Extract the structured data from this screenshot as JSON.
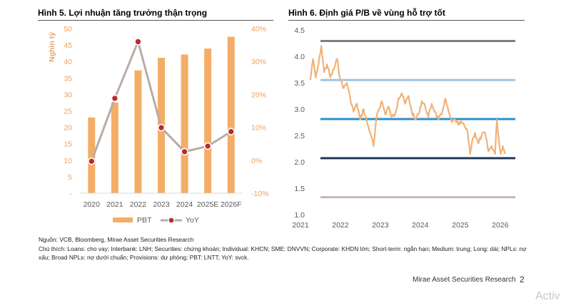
{
  "figures": {
    "left_title": "Hình 5. Lợi nhuận tăng trưởng thận trọng",
    "right_title": "Hình 6. Định giá P/B về vùng hỗ trợ tốt"
  },
  "chart_data": [
    {
      "type": "bar",
      "title": "Hình 5. Lợi nhuận tăng trưởng thận trọng",
      "categories": [
        "2020",
        "2021",
        "2022",
        "2023",
        "2024",
        "2025E",
        "2026F"
      ],
      "ylabel": "Nghìn tỷ",
      "ylim": [
        0,
        50
      ],
      "y_ticks": [
        "-",
        "5",
        "10",
        "15",
        "20",
        "25",
        "30",
        "35",
        "40",
        "45",
        "50"
      ],
      "y2lim": [
        -10,
        40
      ],
      "y2_ticks": [
        "-10%",
        "0%",
        "10%",
        "20%",
        "30%",
        "40%"
      ],
      "series": [
        {
          "name": "PBT",
          "kind": "bar",
          "axis": "left",
          "color": "#f4ad66",
          "values": [
            23,
            27.5,
            37.3,
            41.1,
            42.1,
            43.9,
            47.5
          ]
        },
        {
          "name": "YoY",
          "kind": "line",
          "axis": "right",
          "color": "#b9aca4",
          "marker_color": "#c0282d",
          "values": [
            -0.3,
            18.8,
            36.0,
            9.9,
            2.6,
            4.3,
            8.7
          ]
        }
      ],
      "legend": "bottom",
      "grid": false
    },
    {
      "type": "line",
      "title": "Hình 6. Định giá P/B về vùng hỗ trợ tốt",
      "xlim": [
        "2021-01-01",
        "2026-06-01"
      ],
      "x_ticks": [
        "2021",
        "2022",
        "2023",
        "2024",
        "2025",
        "2026"
      ],
      "ylim": [
        1.0,
        4.5
      ],
      "y_ticks": [
        "1.0",
        "1.5",
        "2.0",
        "2.5",
        "3.0",
        "3.5",
        "4.0",
        "4.5"
      ],
      "reference_lines": [
        {
          "value": 4.29,
          "color": "#7f7f7f"
        },
        {
          "value": 3.55,
          "color": "#9fc4e2"
        },
        {
          "value": 2.81,
          "color": "#2f8fca"
        },
        {
          "value": 2.07,
          "color": "#1f3a5a"
        },
        {
          "value": 1.33,
          "color": "#c9b4b8"
        }
      ],
      "series": [
        {
          "name": "P/B",
          "color": "#f0b27a",
          "points": [
            [
              "2021-04-01",
              3.55
            ],
            [
              "2021-04-25",
              3.95
            ],
            [
              "2021-05-20",
              3.6
            ],
            [
              "2021-06-15",
              3.85
            ],
            [
              "2021-07-10",
              4.2
            ],
            [
              "2021-08-05",
              3.7
            ],
            [
              "2021-09-01",
              3.85
            ],
            [
              "2021-10-01",
              3.6
            ],
            [
              "2021-11-01",
              3.75
            ],
            [
              "2021-12-01",
              3.95
            ],
            [
              "2022-01-01",
              3.55
            ],
            [
              "2022-02-01",
              3.4
            ],
            [
              "2022-03-01",
              3.5
            ],
            [
              "2022-04-01",
              3.2
            ],
            [
              "2022-05-01",
              2.95
            ],
            [
              "2022-06-01",
              3.1
            ],
            [
              "2022-07-01",
              2.8
            ],
            [
              "2022-08-01",
              3.0
            ],
            [
              "2022-09-01",
              2.75
            ],
            [
              "2022-10-01",
              2.55
            ],
            [
              "2022-11-01",
              2.3
            ],
            [
              "2022-12-01",
              2.9
            ],
            [
              "2023-01-15",
              3.15
            ],
            [
              "2023-02-15",
              2.9
            ],
            [
              "2023-03-15",
              3.05
            ],
            [
              "2023-04-15",
              2.85
            ],
            [
              "2023-05-15",
              2.9
            ],
            [
              "2023-06-15",
              3.2
            ],
            [
              "2023-07-15",
              3.3
            ],
            [
              "2023-08-15",
              3.1
            ],
            [
              "2023-09-15",
              3.25
            ],
            [
              "2023-10-15",
              2.95
            ],
            [
              "2023-11-15",
              2.8
            ],
            [
              "2023-12-15",
              2.9
            ],
            [
              "2024-01-15",
              3.15
            ],
            [
              "2024-02-15",
              3.05
            ],
            [
              "2024-03-15",
              2.85
            ],
            [
              "2024-04-15",
              3.1
            ],
            [
              "2024-05-15",
              2.95
            ],
            [
              "2024-06-15",
              2.8
            ],
            [
              "2024-07-15",
              2.9
            ],
            [
              "2024-08-15",
              3.2
            ],
            [
              "2024-09-15",
              2.95
            ],
            [
              "2024-10-15",
              2.75
            ],
            [
              "2024-11-15",
              2.8
            ],
            [
              "2024-12-15",
              2.7
            ],
            [
              "2025-01-15",
              2.75
            ],
            [
              "2025-02-15",
              2.65
            ],
            [
              "2025-03-10",
              2.55
            ],
            [
              "2025-04-01",
              2.15
            ],
            [
              "2025-04-20",
              2.4
            ],
            [
              "2025-05-15",
              2.55
            ],
            [
              "2025-06-15",
              2.35
            ],
            [
              "2025-07-15",
              2.5
            ],
            [
              "2025-08-15",
              2.55
            ],
            [
              "2025-09-15",
              2.2
            ],
            [
              "2025-10-15",
              2.3
            ],
            [
              "2025-11-15",
              2.15
            ],
            [
              "2025-12-01",
              2.8
            ],
            [
              "2025-12-20",
              2.4
            ],
            [
              "2026-01-05",
              2.15
            ],
            [
              "2026-01-25",
              2.3
            ],
            [
              "2026-02-15",
              2.15
            ]
          ]
        }
      ],
      "grid": false
    }
  ],
  "notes": {
    "source": "Nguồn: VCB, Bloomberg, Mirae Asset Securities Research",
    "line1": "Chú thích: Loans: cho vay; Interbank: LNH; Securities: chứng khoán; Individual: KHCN; SME: DNVVN; Corporate: KHDN lớn; Short-term: ngắn hạn; Medium: trung; Long: dài; NPLs: nợ",
    "line2": "xấu; Broad NPLs: nợ dưới chuẩn; Provisions: dự phòng; PBT: LNTT; YoY: svck."
  },
  "footer": {
    "company": "Mirae Asset Securities Research",
    "page_number": "2"
  },
  "watermark": "Activ"
}
